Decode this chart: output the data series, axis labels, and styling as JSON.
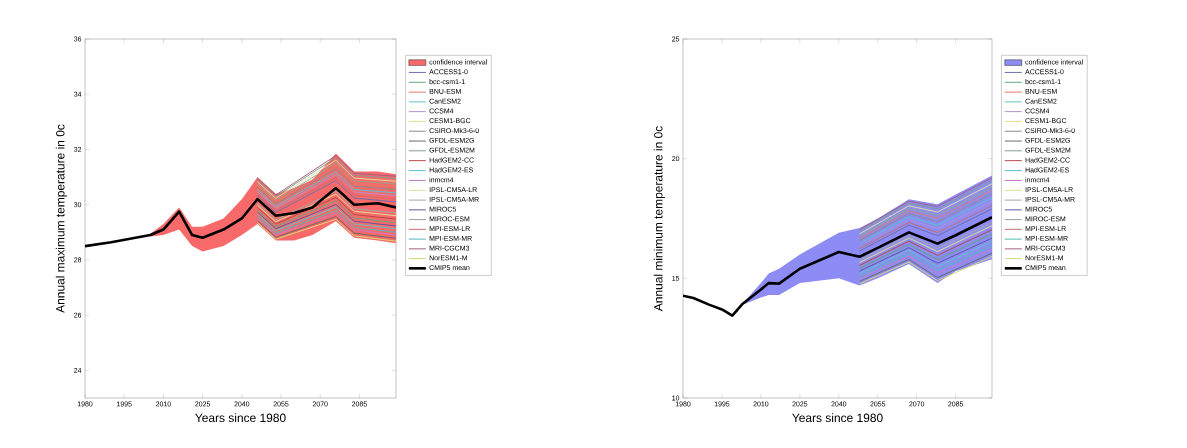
{
  "chart_data": [
    {
      "type": "line",
      "xlabel": "Years since 1980",
      "ylabel": "Annual maximum temperature in 0c",
      "xlim": [
        1980,
        2099
      ],
      "ylim": [
        23,
        36
      ],
      "xticks": [
        1980,
        1995,
        2010,
        2025,
        2040,
        2055,
        2070,
        2085
      ],
      "yticks": [
        24,
        26,
        28,
        30,
        32,
        34,
        36
      ],
      "legend": "right",
      "series": [
        {
          "name": "confidence interval",
          "color": "#f86a6a",
          "x": [
            2005,
            2010,
            2016,
            2021,
            2025,
            2033,
            2040,
            2046,
            2053,
            2060,
            2067,
            2076,
            2083,
            2092,
            2099
          ],
          "values": [
            null,
            null,
            null,
            null,
            null,
            null,
            null,
            null,
            null,
            null,
            null,
            null,
            null,
            null,
            null
          ],
          "lower": [
            28.85,
            28.9,
            29.1,
            28.5,
            28.3,
            28.5,
            28.9,
            29.3,
            28.7,
            28.7,
            28.9,
            29.4,
            28.8,
            28.7,
            28.6
          ],
          "upper": [
            28.95,
            29.3,
            29.9,
            29.2,
            29.2,
            29.5,
            30.2,
            31.0,
            30.4,
            30.6,
            30.9,
            31.85,
            31.2,
            31.2,
            31.1
          ]
        },
        {
          "name": "ACCESS1-0",
          "color": "#6f6fb0",
          "x": [
            2046,
            2053,
            2076,
            2083,
            2099
          ],
          "values": [
            30.32,
            29.72,
            30.87,
            30.24,
            30.1
          ]
        },
        {
          "name": "bcc-csm1-1",
          "color": "#5fa877",
          "x": [
            2046,
            2053,
            2076,
            2083,
            2099
          ],
          "values": [
            29.81,
            29.21,
            30.14,
            29.52,
            29.35
          ]
        },
        {
          "name": "BNU-ESM",
          "color": "#e07a66",
          "x": [
            2046,
            2053,
            2076,
            2083,
            2099
          ],
          "values": [
            30.69,
            30.09,
            31.41,
            30.77,
            30.65
          ]
        },
        {
          "name": "CanESM2",
          "color": "#5cc6c6",
          "x": [
            2046,
            2053,
            2076,
            2083,
            2099
          ],
          "values": [
            29.66,
            29.06,
            29.91,
            29.3,
            29.13
          ]
        },
        {
          "name": "CCSM4",
          "color": "#b58fd0",
          "x": [
            2046,
            2053,
            2076,
            2083,
            2099
          ],
          "values": [
            30.47,
            29.87,
            31.09,
            30.46,
            30.33
          ]
        },
        {
          "name": "CESM1-BGC",
          "color": "#dede8a",
          "x": [
            2046,
            2053,
            2076,
            2083,
            2099
          ],
          "values": [
            29.98,
            29.38,
            30.38,
            29.76,
            29.6
          ]
        },
        {
          "name": "CSIRO-Mk3-6-0",
          "color": "#8c8c8c",
          "x": [
            2046,
            2053,
            2076,
            2083,
            2099
          ],
          "values": [
            30.63,
            30.03,
            31.31,
            30.67,
            30.55
          ]
        },
        {
          "name": "GFDL-ESM2G",
          "color": "#6a6a6a",
          "x": [
            2046,
            2053,
            2076,
            2083,
            2099
          ],
          "values": [
            29.42,
            28.82,
            29.57,
            28.97,
            28.78
          ]
        },
        {
          "name": "GFDL-ESM2M",
          "color": "#7fa08e",
          "x": [
            2046,
            2053,
            2076,
            2083,
            2099
          ],
          "values": [
            30.9,
            30.3,
            31.7,
            31.06,
            30.95
          ]
        },
        {
          "name": "HadGEM2-CC",
          "color": "#b84848",
          "x": [
            2046,
            2053,
            2076,
            2083,
            2099
          ],
          "values": [
            29.9,
            29.3,
            30.26,
            29.64,
            29.48
          ]
        },
        {
          "name": "HadGEM2-ES",
          "color": "#55c4d0",
          "x": [
            2046,
            2053,
            2076,
            2083,
            2099
          ],
          "values": [
            30.54,
            29.94,
            31.19,
            30.55,
            30.43
          ]
        },
        {
          "name": "inmcm4",
          "color": "#c77ac7",
          "x": [
            2046,
            2053,
            2076,
            2083,
            2099
          ],
          "values": [
            29.5,
            28.9,
            29.69,
            29.09,
            28.9
          ]
        },
        {
          "name": "IPSL-CM5A-LR",
          "color": "#e0dc9a",
          "x": [
            2046,
            2053,
            2076,
            2083,
            2099
          ],
          "values": [
            30.83,
            30.23,
            31.61,
            30.96,
            30.85
          ]
        },
        {
          "name": "IPSL-CM5A-MR",
          "color": "#a6a6a6",
          "x": [
            2046,
            2053,
            2076,
            2083,
            2099
          ],
          "values": [
            30.05,
            29.45,
            30.48,
            29.86,
            29.7
          ]
        },
        {
          "name": "MIROC5",
          "color": "#5a5aa8",
          "x": [
            2046,
            2053,
            2076,
            2083,
            2099
          ],
          "values": [
            29.73,
            29.13,
            30.01,
            29.4,
            29.23
          ]
        },
        {
          "name": "MIROC-ESM",
          "color": "#92a892",
          "x": [
            2046,
            2053,
            2076,
            2083,
            2099
          ],
          "values": [
            30.76,
            30.16,
            31.51,
            30.86,
            30.75
          ]
        },
        {
          "name": "MPI-ESM-LR",
          "color": "#cc6c6c",
          "x": [
            2046,
            2053,
            2076,
            2083,
            2099
          ],
          "values": [
            30.39,
            29.79,
            30.97,
            30.34,
            30.2
          ]
        },
        {
          "name": "MPI-ESM-MR",
          "color": "#55b8b8",
          "x": [
            2046,
            2053,
            2076,
            2083,
            2099
          ],
          "values": [
            29.57,
            28.97,
            29.79,
            29.18,
            29.0
          ]
        },
        {
          "name": "MRI-CGCM3",
          "color": "#a85c86",
          "x": [
            2046,
            2053,
            2076,
            2083,
            2099
          ],
          "values": [
            30.95,
            30.35,
            31.78,
            31.13,
            31.03
          ]
        },
        {
          "name": "NorESM1-M",
          "color": "#d8d878",
          "x": [
            2046,
            2053,
            2076,
            2083,
            2099
          ],
          "values": [
            29.35,
            28.75,
            29.47,
            28.87,
            28.68
          ]
        },
        {
          "name": "CMIP5 mean",
          "color": "#000000",
          "x": [
            1980,
            1990,
            2005,
            2010,
            2016,
            2021,
            2025,
            2033,
            2040,
            2046,
            2053,
            2060,
            2067,
            2076,
            2083,
            2092,
            2099
          ],
          "values": [
            28.5,
            28.64,
            28.9,
            29.1,
            29.75,
            28.9,
            28.8,
            29.1,
            29.5,
            30.2,
            29.6,
            29.7,
            29.9,
            30.6,
            30.0,
            30.05,
            29.9
          ]
        }
      ]
    },
    {
      "type": "line",
      "xlabel": "Years since 1980",
      "ylabel": "Annual minimum temperature in 0c",
      "xlim": [
        1980,
        2099
      ],
      "ylim": [
        10,
        25
      ],
      "xticks": [
        1980,
        1995,
        2010,
        2025,
        2040,
        2055,
        2070,
        2085
      ],
      "yticks": [
        10,
        15,
        20,
        25
      ],
      "legend": "right",
      "series": [
        {
          "name": "confidence interval",
          "color": "#8c8cf4",
          "x": [
            2003,
            2010,
            2013,
            2017,
            2025,
            2040,
            2048,
            2055,
            2067,
            2078,
            2085,
            2099
          ],
          "values": [
            null,
            null,
            null,
            null,
            null,
            null,
            null,
            null,
            null,
            null,
            null,
            null
          ],
          "lower": [
            13.9,
            14.2,
            14.3,
            14.3,
            14.8,
            15.0,
            14.7,
            15.0,
            15.6,
            14.8,
            15.3,
            15.8
          ],
          "upper": [
            13.95,
            14.8,
            15.2,
            15.4,
            16.0,
            16.9,
            17.1,
            17.5,
            18.3,
            18.1,
            18.5,
            19.3
          ]
        },
        {
          "name": "ACCESS1-0",
          "color": "#6f6fb0",
          "x": [
            2048,
            2067,
            2078,
            2099
          ],
          "values": [
            16.14,
            17.22,
            16.78,
            17.9
          ]
        },
        {
          "name": "bcc-csm1-1",
          "color": "#5fa877",
          "x": [
            2048,
            2067,
            2078,
            2099
          ],
          "values": [
            15.42,
            16.41,
            15.79,
            16.85
          ]
        },
        {
          "name": "BNU-ESM",
          "color": "#e07a66",
          "x": [
            2048,
            2067,
            2078,
            2099
          ],
          "values": [
            16.67,
            17.81,
            17.51,
            18.67
          ]
        },
        {
          "name": "CanESM2",
          "color": "#5cc6c6",
          "x": [
            2048,
            2067,
            2078,
            2099
          ],
          "values": [
            15.2,
            16.17,
            15.49,
            16.54
          ]
        },
        {
          "name": "CCSM4",
          "color": "#b58fd0",
          "x": [
            2048,
            2067,
            2078,
            2099
          ],
          "values": [
            16.36,
            17.46,
            17.08,
            18.22
          ]
        },
        {
          "name": "CESM1-BGC",
          "color": "#dede8a",
          "x": [
            2048,
            2067,
            2078,
            2099
          ],
          "values": [
            15.66,
            16.68,
            16.12,
            17.2
          ]
        },
        {
          "name": "CSIRO-Mk3-6-0",
          "color": "#8c8c8c",
          "x": [
            2048,
            2067,
            2078,
            2099
          ],
          "values": [
            16.57,
            17.71,
            17.37,
            18.53
          ]
        },
        {
          "name": "GFDL-ESM2G",
          "color": "#6a6a6a",
          "x": [
            2048,
            2067,
            2078,
            2099
          ],
          "values": [
            14.87,
            15.79,
            15.03,
            16.05
          ]
        },
        {
          "name": "GFDL-ESM2M",
          "color": "#7fa08e",
          "x": [
            2048,
            2067,
            2078,
            2099
          ],
          "values": [
            16.96,
            18.14,
            17.9,
            19.09
          ]
        },
        {
          "name": "HadGEM2-CC",
          "color": "#b84848",
          "x": [
            2048,
            2067,
            2078,
            2099
          ],
          "values": [
            15.54,
            16.55,
            15.96,
            17.03
          ]
        },
        {
          "name": "HadGEM2-ES",
          "color": "#55c4d0",
          "x": [
            2048,
            2067,
            2078,
            2099
          ],
          "values": [
            16.45,
            17.57,
            17.21,
            18.36
          ]
        },
        {
          "name": "inmcm4",
          "color": "#c77ac7",
          "x": [
            2048,
            2067,
            2078,
            2099
          ],
          "values": [
            14.99,
            15.92,
            15.2,
            16.22
          ]
        },
        {
          "name": "IPSL-CM5A-LR",
          "color": "#e0dc9a",
          "x": [
            2048,
            2067,
            2078,
            2099
          ],
          "values": [
            16.86,
            18.03,
            17.77,
            18.95
          ]
        },
        {
          "name": "IPSL-CM5A-MR",
          "color": "#a6a6a6",
          "x": [
            2048,
            2067,
            2078,
            2099
          ],
          "values": [
            15.76,
            16.79,
            16.25,
            17.34
          ]
        },
        {
          "name": "MIROC5",
          "color": "#5a5aa8",
          "x": [
            2048,
            2067,
            2078,
            2099
          ],
          "values": [
            15.3,
            16.28,
            15.63,
            16.68
          ]
        },
        {
          "name": "MIROC-ESM",
          "color": "#92a892",
          "x": [
            2048,
            2067,
            2078,
            2099
          ],
          "values": [
            16.76,
            17.92,
            17.64,
            18.81
          ]
        },
        {
          "name": "MPI-ESM-LR",
          "color": "#cc6c6c",
          "x": [
            2048,
            2067,
            2078,
            2099
          ],
          "values": [
            16.24,
            17.33,
            16.91,
            18.04
          ]
        },
        {
          "name": "MPI-ESM-MR",
          "color": "#55b8b8",
          "x": [
            2048,
            2067,
            2078,
            2099
          ],
          "values": [
            15.08,
            16.03,
            15.33,
            16.36
          ]
        },
        {
          "name": "MRI-CGCM3",
          "color": "#a85c86",
          "x": [
            2048,
            2067,
            2078,
            2099
          ],
          "values": [
            17.03,
            18.22,
            18.0,
            19.2
          ]
        },
        {
          "name": "NorESM1-M",
          "color": "#d8d878",
          "x": [
            2048,
            2067,
            2078,
            2099
          ],
          "values": [
            14.77,
            15.68,
            14.9,
            15.91
          ]
        },
        {
          "name": "CMIP5 mean",
          "color": "#000000",
          "x": [
            1980,
            1984,
            1990,
            1995,
            1999,
            2003,
            2010,
            2013,
            2017,
            2025,
            2040,
            2048,
            2055,
            2067,
            2078,
            2085,
            2099
          ],
          "values": [
            14.27,
            14.18,
            13.9,
            13.7,
            13.44,
            13.94,
            14.53,
            14.8,
            14.78,
            15.4,
            16.1,
            15.9,
            16.27,
            16.92,
            16.45,
            16.8,
            17.55
          ]
        }
      ]
    }
  ]
}
